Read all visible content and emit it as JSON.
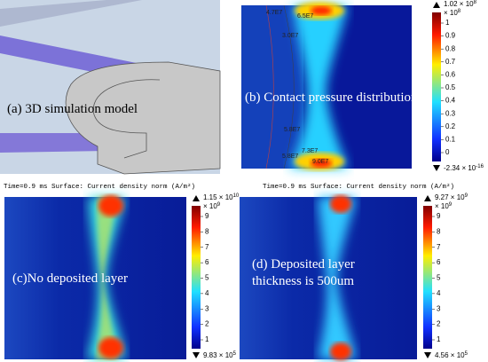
{
  "panels": [
    {
      "caption": [
        "(a) 3D simulation model"
      ]
    },
    {
      "caption": [
        "(b) Contact pressure distribution"
      ],
      "colorbar": {
        "max": [
          "1.02 × 10",
          "8"
        ],
        "unit": [
          "× 10",
          "8"
        ],
        "ticks": [
          "1",
          "0.9",
          "0.8",
          "0.7",
          "0.6",
          "0.5",
          "0.4",
          "0.3",
          "0.2",
          "0.1",
          "0"
        ],
        "min": [
          "-2.34 × 10",
          "-16"
        ]
      },
      "contour_labels": [
        "4.7E7",
        "6.5E7",
        "3.0E7",
        "5.8E7",
        "7.3E7",
        "5.8E7",
        "9.0E7"
      ]
    },
    {
      "caption": [
        "(c)No deposited layer"
      ],
      "colorbar": {
        "max": [
          "1.15 × 10",
          "10"
        ],
        "unit": [
          "× 10",
          "9"
        ],
        "ticks": [
          "9",
          "8",
          "7",
          "6",
          "5",
          "4",
          "3",
          "2",
          "1"
        ],
        "min": [
          "9.83 × 10",
          "5"
        ]
      }
    },
    {
      "caption": [
        "(d) Deposited layer",
        "thickness is 500um"
      ],
      "colorbar": {
        "max": [
          "9.27 × 10",
          "9"
        ],
        "unit": [
          "× 10",
          "9"
        ],
        "ticks": [
          "9",
          "8",
          "7",
          "6",
          "5",
          "4",
          "3",
          "2",
          "1"
        ],
        "min": [
          "4.56 × 10",
          "5"
        ]
      }
    }
  ],
  "headers": [
    "Time=0.9 ms   Surface: Current density norm (A/m²)",
    "Time=0.9 ms   Surface: Current density norm (A/m²)"
  ]
}
